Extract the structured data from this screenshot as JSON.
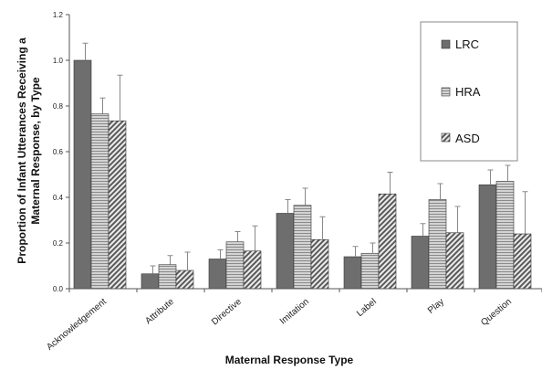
{
  "chart_data": {
    "type": "bar",
    "title": "",
    "xlabel": "Maternal Response Type",
    "ylabel": "Proportion of Infant Utterances Receiving a Maternal Response, by Type",
    "ylabel_lines": [
      "Proportion of Infant Utterances Receiving a",
      "Maternal Response, by Type"
    ],
    "ylim": [
      0,
      1.2
    ],
    "yticks": [
      "0.0",
      "0.2",
      "0.4",
      "0.6",
      "0.8",
      "1.0",
      "1.2"
    ],
    "grid": false,
    "legend_position": "top-right",
    "categories": [
      "Acknowledgement",
      "Attribute",
      "Directive",
      "Imitation",
      "Label",
      "Play",
      "Question"
    ],
    "series": [
      {
        "name": "LRC",
        "values": [
          1.0,
          0.065,
          0.13,
          0.33,
          0.14,
          0.23,
          0.455
        ],
        "error": [
          0.075,
          0.035,
          0.04,
          0.06,
          0.045,
          0.055,
          0.065
        ],
        "pattern": "solid-dark"
      },
      {
        "name": "HRA",
        "values": [
          0.765,
          0.105,
          0.205,
          0.365,
          0.155,
          0.39,
          0.47
        ],
        "error": [
          0.07,
          0.04,
          0.045,
          0.075,
          0.045,
          0.07,
          0.07
        ],
        "pattern": "horizontal-lines"
      },
      {
        "name": "ASD",
        "values": [
          0.735,
          0.08,
          0.165,
          0.215,
          0.415,
          0.245,
          0.24
        ],
        "error": [
          0.2,
          0.08,
          0.11,
          0.1,
          0.095,
          0.115,
          0.185
        ],
        "pattern": "diagonal-hatch"
      }
    ]
  }
}
